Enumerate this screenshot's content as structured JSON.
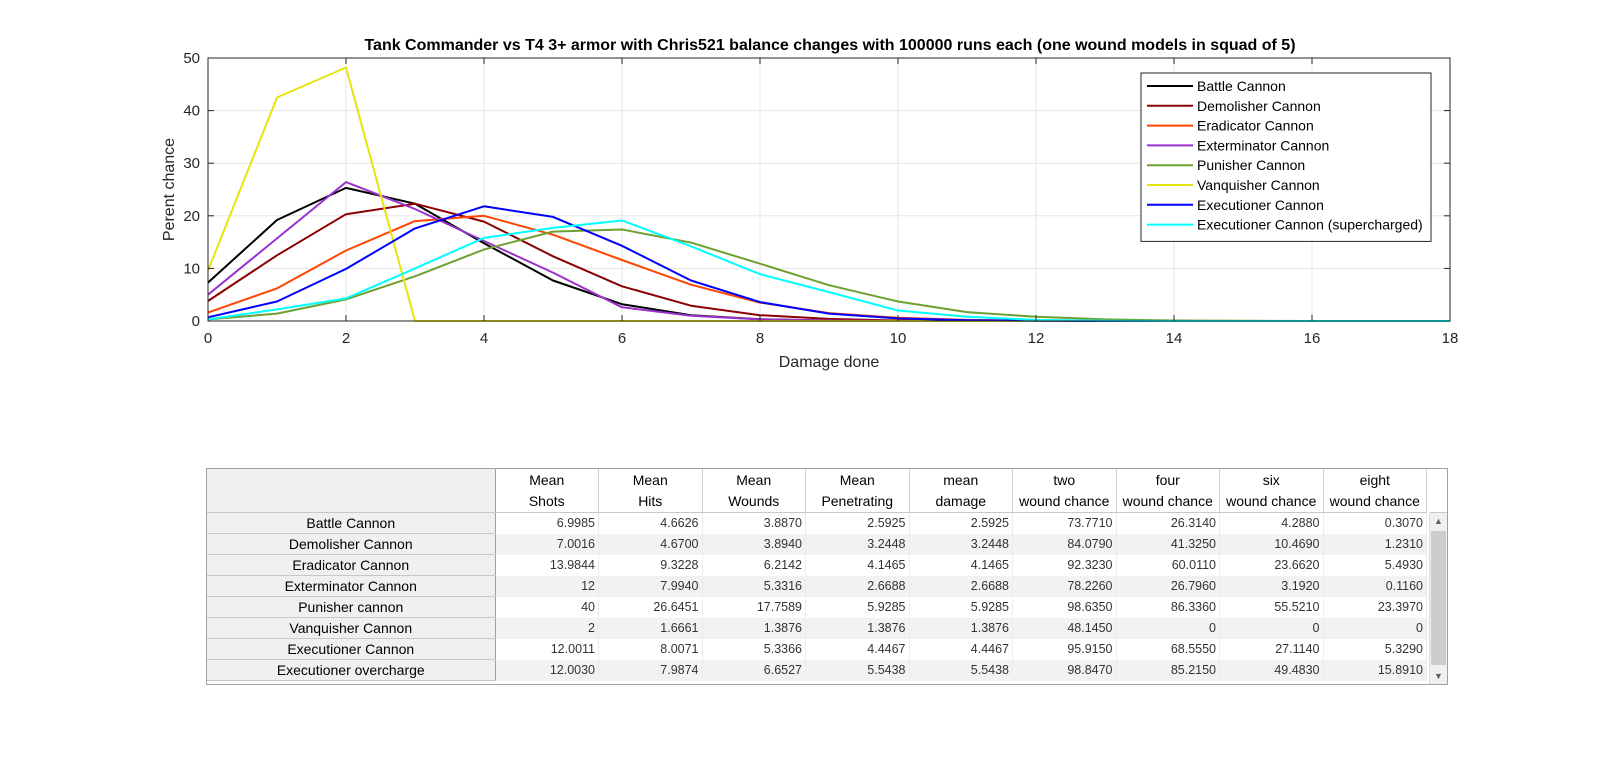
{
  "chart_data": {
    "type": "line",
    "title": "Tank Commander vs T4 3+ armor with Chris521 balance changes with 100000 runs each (one wound models in squad of 5)",
    "xlabel": "Damage done",
    "ylabel": "Perent chance",
    "xlim": [
      0,
      18
    ],
    "ylim": [
      0,
      50
    ],
    "xticks": [
      0,
      2,
      4,
      6,
      8,
      10,
      12,
      14,
      16,
      18
    ],
    "yticks": [
      0,
      10,
      20,
      30,
      40,
      50
    ],
    "grid": true,
    "legend_position": "top-right",
    "x": [
      0,
      1,
      2,
      3,
      4,
      5,
      6,
      7,
      8,
      9,
      10,
      11,
      12,
      13,
      14,
      15,
      16,
      17,
      18
    ],
    "series": [
      {
        "name": "Battle Cannon",
        "color": "#000000",
        "values": [
          7.3,
          19.2,
          25.3,
          22.3,
          14.8,
          7.7,
          3.2,
          1.1,
          0.35,
          0.1,
          0.03,
          0,
          0,
          0,
          0,
          0,
          0,
          0,
          0
        ]
      },
      {
        "name": "Demolisher Cannon",
        "color": "#8b0000",
        "values": [
          3.8,
          12.5,
          20.3,
          22.3,
          18.9,
          12.3,
          6.6,
          2.9,
          1.1,
          0.4,
          0.1,
          0.03,
          0,
          0,
          0,
          0,
          0,
          0,
          0
        ]
      },
      {
        "name": "Eradicator Cannon",
        "color": "#ff4500",
        "values": [
          1.6,
          6.2,
          13.4,
          19.0,
          20.0,
          16.4,
          11.6,
          6.9,
          3.5,
          1.5,
          0.6,
          0.2,
          0.05,
          0,
          0,
          0,
          0,
          0,
          0
        ]
      },
      {
        "name": "Exterminator Cannon",
        "color": "#9932cc",
        "values": [
          5.0,
          15.7,
          26.4,
          21.3,
          15.2,
          9.2,
          2.6,
          1.0,
          0.3,
          0.1,
          0.02,
          0,
          0,
          0,
          0,
          0,
          0,
          0,
          0
        ]
      },
      {
        "name": "Punisher Cannon",
        "color": "#6ea031",
        "values": [
          0.3,
          1.4,
          4.1,
          8.5,
          13.6,
          17.0,
          17.4,
          14.9,
          10.9,
          6.8,
          3.7,
          1.7,
          0.8,
          0.3,
          0.1,
          0.03,
          0,
          0,
          0
        ]
      },
      {
        "name": "Vanquisher Cannon",
        "color": "#e5e50e",
        "values": [
          9.6,
          42.5,
          48.2,
          0,
          0,
          0,
          0,
          0,
          0,
          0,
          0,
          0,
          0,
          0,
          0,
          0,
          0,
          0,
          0
        ]
      },
      {
        "name": "Executioner Cannon",
        "color": "#0000ff",
        "values": [
          0.7,
          3.7,
          9.9,
          17.6,
          21.8,
          19.8,
          14.3,
          7.7,
          3.6,
          1.4,
          0.5,
          0.15,
          0.04,
          0,
          0,
          0,
          0,
          0,
          0
        ]
      },
      {
        "name": "Executioner Cannon (supercharged)",
        "color": "#00ffff",
        "values": [
          0.3,
          2.2,
          4.3,
          10.0,
          15.8,
          17.7,
          19.1,
          14.2,
          8.9,
          5.5,
          2.0,
          0.8,
          0.2,
          0.05,
          0,
          0,
          0,
          0,
          0
        ]
      }
    ]
  },
  "table": {
    "columns": [
      {
        "line1": "Mean",
        "line2": "Shots"
      },
      {
        "line1": "Mean",
        "line2": "Hits"
      },
      {
        "line1": "Mean",
        "line2": "Wounds"
      },
      {
        "line1": "Mean",
        "line2": "Penetrating"
      },
      {
        "line1": "mean",
        "line2": "damage"
      },
      {
        "line1": "two",
        "line2": "wound chance"
      },
      {
        "line1": "four",
        "line2": "wound chance"
      },
      {
        "line1": "six",
        "line2": "wound chance"
      },
      {
        "line1": "eight",
        "line2": "wound chance"
      }
    ],
    "rows": [
      {
        "name": "Battle Cannon",
        "values": [
          "6.9985",
          "4.6626",
          "3.8870",
          "2.5925",
          "2.5925",
          "73.7710",
          "26.3140",
          "4.2880",
          "0.3070"
        ]
      },
      {
        "name": "Demolisher Cannon",
        "values": [
          "7.0016",
          "4.6700",
          "3.8940",
          "3.2448",
          "3.2448",
          "84.0790",
          "41.3250",
          "10.4690",
          "1.2310"
        ]
      },
      {
        "name": "Eradicator Cannon",
        "values": [
          "13.9844",
          "9.3228",
          "6.2142",
          "4.1465",
          "4.1465",
          "92.3230",
          "60.0110",
          "23.6620",
          "5.4930"
        ]
      },
      {
        "name": "Exterminator Cannon",
        "values": [
          "12",
          "7.9940",
          "5.3316",
          "2.6688",
          "2.6688",
          "78.2260",
          "26.7960",
          "3.1920",
          "0.1160"
        ]
      },
      {
        "name": "Punisher cannon",
        "values": [
          "40",
          "26.6451",
          "17.7589",
          "5.9285",
          "5.9285",
          "98.6350",
          "86.3360",
          "55.5210",
          "23.3970"
        ]
      },
      {
        "name": "Vanquisher Cannon",
        "values": [
          "2",
          "1.6661",
          "1.3876",
          "1.3876",
          "1.3876",
          "48.1450",
          "0",
          "0",
          "0"
        ]
      },
      {
        "name": "Executioner Cannon",
        "values": [
          "12.0011",
          "8.0071",
          "5.3366",
          "4.4467",
          "4.4467",
          "95.9150",
          "68.5550",
          "27.1140",
          "5.3290"
        ]
      },
      {
        "name": "Executioner overcharge",
        "values": [
          "12.0030",
          "7.9874",
          "6.6527",
          "5.5438",
          "5.5438",
          "98.8470",
          "85.2150",
          "49.4830",
          "15.8910"
        ]
      }
    ],
    "scroll_up_icon": "chevron-up-icon",
    "scroll_down_icon": "chevron-down-icon"
  }
}
